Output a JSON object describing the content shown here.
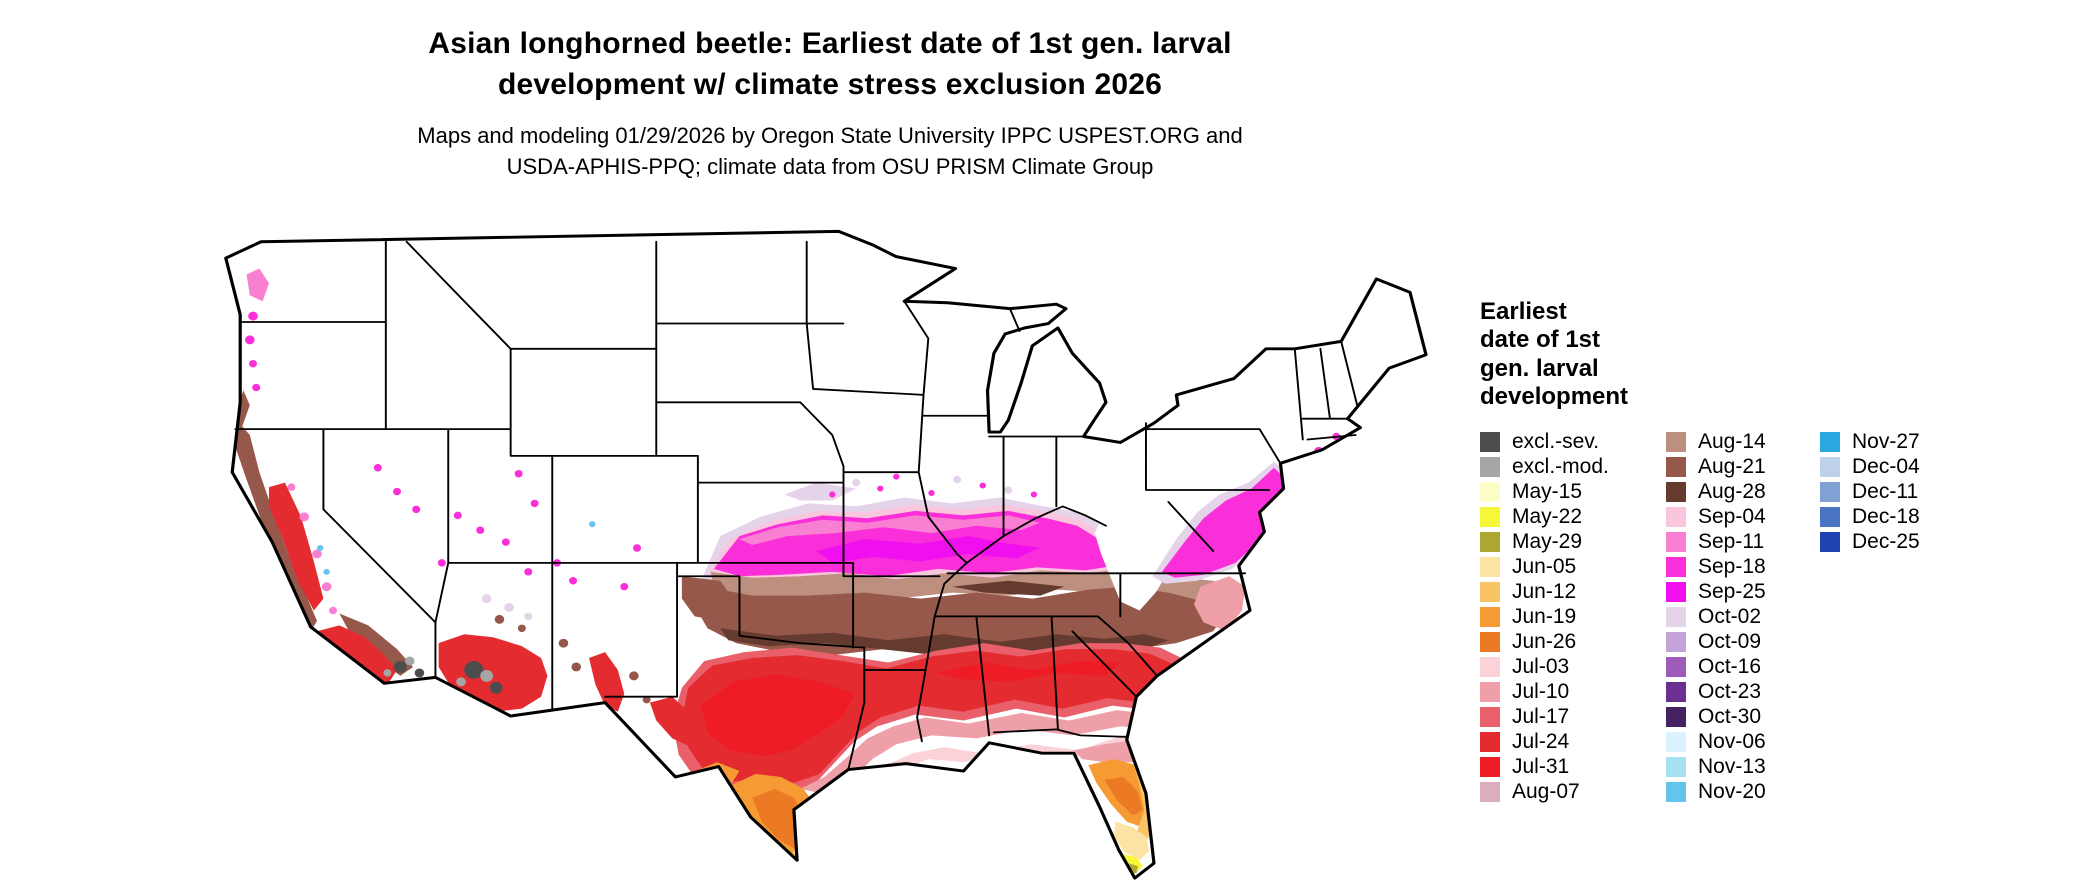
{
  "title": {
    "line1": "Asian longhorned beetle: Earliest date of 1st gen. larval",
    "line2": "development w/ climate stress exclusion 2026"
  },
  "subtitle": {
    "line1": "Maps and modeling 01/29/2026 by Oregon State University IPPC USPEST.ORG and",
    "line2": "USDA-APHIS-PPQ; climate data from OSU PRISM Climate Group"
  },
  "legend": {
    "title": "Earliest date of 1st gen. larval development",
    "title_lines": [
      "Earliest",
      "date of 1st",
      "gen. larval",
      "development"
    ],
    "columns": [
      [
        {
          "label": "excl.-sev.",
          "color": "#4d4d4d"
        },
        {
          "label": "excl.-mod.",
          "color": "#a6a6a6"
        },
        {
          "label": "May-15",
          "color": "#fdfdca"
        },
        {
          "label": "May-22",
          "color": "#f7f73a"
        },
        {
          "label": "May-29",
          "color": "#ada832"
        },
        {
          "label": "Jun-05",
          "color": "#fce3a3"
        },
        {
          "label": "Jun-12",
          "color": "#f9c465"
        },
        {
          "label": "Jun-19",
          "color": "#f69b34"
        },
        {
          "label": "Jun-26",
          "color": "#ec7a25"
        },
        {
          "label": "Jul-03",
          "color": "#fad2d7"
        },
        {
          "label": "Jul-10",
          "color": "#ef9fa8"
        },
        {
          "label": "Jul-17",
          "color": "#e9606a"
        },
        {
          "label": "Jul-24",
          "color": "#e42b2f"
        },
        {
          "label": "Jul-31",
          "color": "#ee1c25"
        },
        {
          "label": "Aug-07",
          "color": "#dcaebd"
        }
      ],
      [
        {
          "label": "Aug-14",
          "color": "#bd8f7e"
        },
        {
          "label": "Aug-21",
          "color": "#96584a"
        },
        {
          "label": "Aug-28",
          "color": "#653a2f"
        },
        {
          "label": "Sep-04",
          "color": "#f9c6de"
        },
        {
          "label": "Sep-11",
          "color": "#f97fd3"
        },
        {
          "label": "Sep-18",
          "color": "#fb2fd9"
        },
        {
          "label": "Sep-25",
          "color": "#ef0fef"
        },
        {
          "label": "Oct-02",
          "color": "#e5d3ea"
        },
        {
          "label": "Oct-09",
          "color": "#c4a3d8"
        },
        {
          "label": "Oct-16",
          "color": "#9d5cb8"
        },
        {
          "label": "Oct-23",
          "color": "#6b2e91"
        },
        {
          "label": "Oct-30",
          "color": "#45215f"
        },
        {
          "label": "Nov-06",
          "color": "#dbf3fc"
        },
        {
          "label": "Nov-13",
          "color": "#a8e0f3"
        },
        {
          "label": "Nov-20",
          "color": "#63c5ec"
        }
      ],
      [
        {
          "label": "Nov-27",
          "color": "#29a8e0"
        },
        {
          "label": "Dec-04",
          "color": "#bdd2ea"
        },
        {
          "label": "Dec-11",
          "color": "#7fa1d4"
        },
        {
          "label": "Dec-18",
          "color": "#4a75c4"
        },
        {
          "label": "Dec-25",
          "color": "#2041b0"
        }
      ]
    ]
  }
}
